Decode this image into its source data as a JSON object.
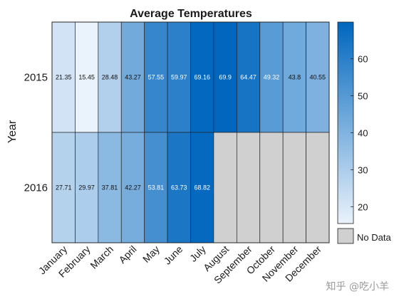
{
  "chart_data": {
    "type": "heatmap",
    "title": "Average Temperatures",
    "ylabel": "Year",
    "xlabel": "",
    "categories": [
      "January",
      "February",
      "March",
      "April",
      "May",
      "June",
      "July",
      "August",
      "September",
      "October",
      "November",
      "December"
    ],
    "rows": [
      "2015",
      "2016"
    ],
    "values": [
      [
        21.35,
        15.45,
        28.48,
        43.27,
        57.55,
        59.97,
        69.16,
        69.9,
        64.47,
        49.32,
        43.8,
        40.55
      ],
      [
        27.71,
        29.97,
        37.81,
        42.27,
        53.81,
        63.73,
        68.82,
        null,
        null,
        null,
        null,
        null
      ]
    ],
    "value_labels": [
      [
        "21.35",
        "15.45",
        "28.48",
        "43.27",
        "57.55",
        "59.97",
        "69.16",
        "69.9",
        "64.47",
        "49.32",
        "43.8",
        "40.55"
      ],
      [
        "27.71",
        "29.97",
        "37.81",
        "42.27",
        "53.81",
        "63.73",
        "68.82",
        "",
        "",
        "",
        "",
        ""
      ]
    ],
    "colorbar": {
      "range": [
        15.45,
        69.9
      ],
      "ticks": [
        20,
        30,
        40,
        50,
        60
      ],
      "tick_labels": [
        "20",
        "30",
        "40",
        "50",
        "60"
      ],
      "color_low": "#EAF2FB",
      "color_high": "#0066BE"
    },
    "missing_label": "No Data",
    "missing_color": "#D0D0D0",
    "grid": true
  },
  "watermark": "知乎 @吃小羊"
}
